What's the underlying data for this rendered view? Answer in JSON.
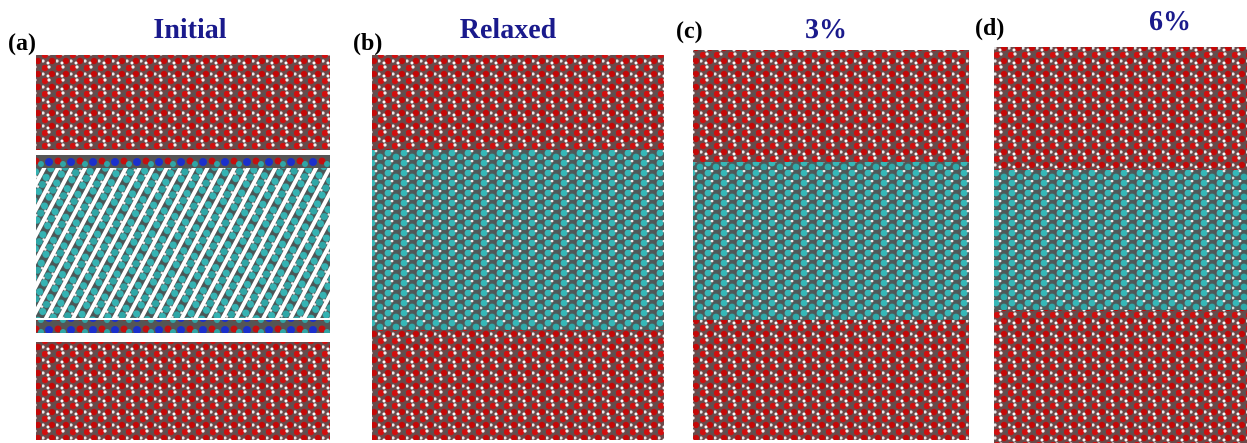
{
  "panels": [
    {
      "label": "(a)",
      "title": "Initial"
    },
    {
      "label": "(b)",
      "title": "Relaxed"
    },
    {
      "label": "(c)",
      "title": "3%"
    },
    {
      "label": "(d)",
      "title": "6%"
    }
  ]
}
